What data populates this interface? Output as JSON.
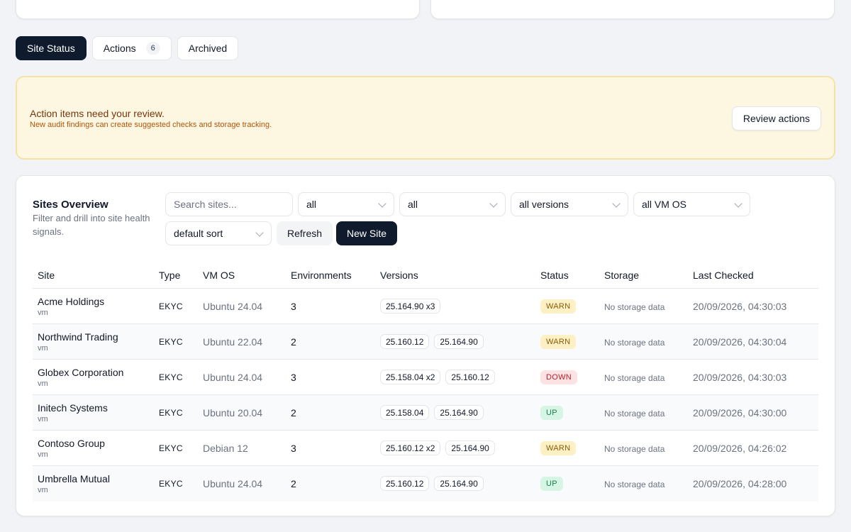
{
  "tabs": [
    {
      "label": "Site Status",
      "active": true
    },
    {
      "label": "Actions",
      "badge": "6",
      "active": false
    },
    {
      "label": "Archived",
      "active": false
    }
  ],
  "alert": {
    "title": "Action items need your review.",
    "subtitle": "New audit findings can create suggested checks and storage tracking.",
    "button": "Review actions"
  },
  "overview": {
    "title": "Sites Overview",
    "subtitle": "Filter and drill into site health signals.",
    "search_placeholder": "Search sites...",
    "filters": [
      "all",
      "all",
      "all versions",
      "all VM OS"
    ],
    "sort": "default sort",
    "refresh_label": "Refresh",
    "new_site_label": "New Site"
  },
  "table": {
    "headers": [
      "Site",
      "Type",
      "VM OS",
      "Environments",
      "Versions",
      "Status",
      "Storage",
      "Last Checked"
    ],
    "rows": [
      {
        "name": "Acme Holdings",
        "kind": "vm",
        "type": "EKYC",
        "os": "Ubuntu 24.04",
        "envs": "3",
        "versions": [
          "25.164.90 x3"
        ],
        "status": "WARN",
        "storage": "No storage data",
        "checked": "20/09/2026, 04:30:03"
      },
      {
        "name": "Northwind Trading",
        "kind": "vm",
        "type": "EKYC",
        "os": "Ubuntu 22.04",
        "envs": "2",
        "versions": [
          "25.160.12",
          "25.164.90"
        ],
        "status": "WARN",
        "storage": "No storage data",
        "checked": "20/09/2026, 04:30:04"
      },
      {
        "name": "Globex Corporation",
        "kind": "vm",
        "type": "EKYC",
        "os": "Ubuntu 24.04",
        "envs": "3",
        "versions": [
          "25.158.04 x2",
          "25.160.12"
        ],
        "status": "DOWN",
        "storage": "No storage data",
        "checked": "20/09/2026, 04:30:03"
      },
      {
        "name": "Initech Systems",
        "kind": "vm",
        "type": "EKYC",
        "os": "Ubuntu 20.04",
        "envs": "2",
        "versions": [
          "25.158.04",
          "25.164.90"
        ],
        "status": "UP",
        "storage": "No storage data",
        "checked": "20/09/2026, 04:30:00"
      },
      {
        "name": "Contoso Group",
        "kind": "vm",
        "type": "EKYC",
        "os": "Debian 12",
        "envs": "3",
        "versions": [
          "25.160.12 x2",
          "25.164.90"
        ],
        "status": "WARN",
        "storage": "No storage data",
        "checked": "20/09/2026, 04:26:02"
      },
      {
        "name": "Umbrella Mutual",
        "kind": "vm",
        "type": "EKYC",
        "os": "Ubuntu 24.04",
        "envs": "2",
        "versions": [
          "25.160.12",
          "25.164.90"
        ],
        "status": "UP",
        "storage": "No storage data",
        "checked": "20/09/2026, 04:28:00"
      }
    ]
  },
  "colors": {
    "primary": "#0f1b2d",
    "warn": "#fdf0c4",
    "down": "#fde2e4",
    "up": "#d7f5e5",
    "alert_bg": "#fdf7e1"
  }
}
